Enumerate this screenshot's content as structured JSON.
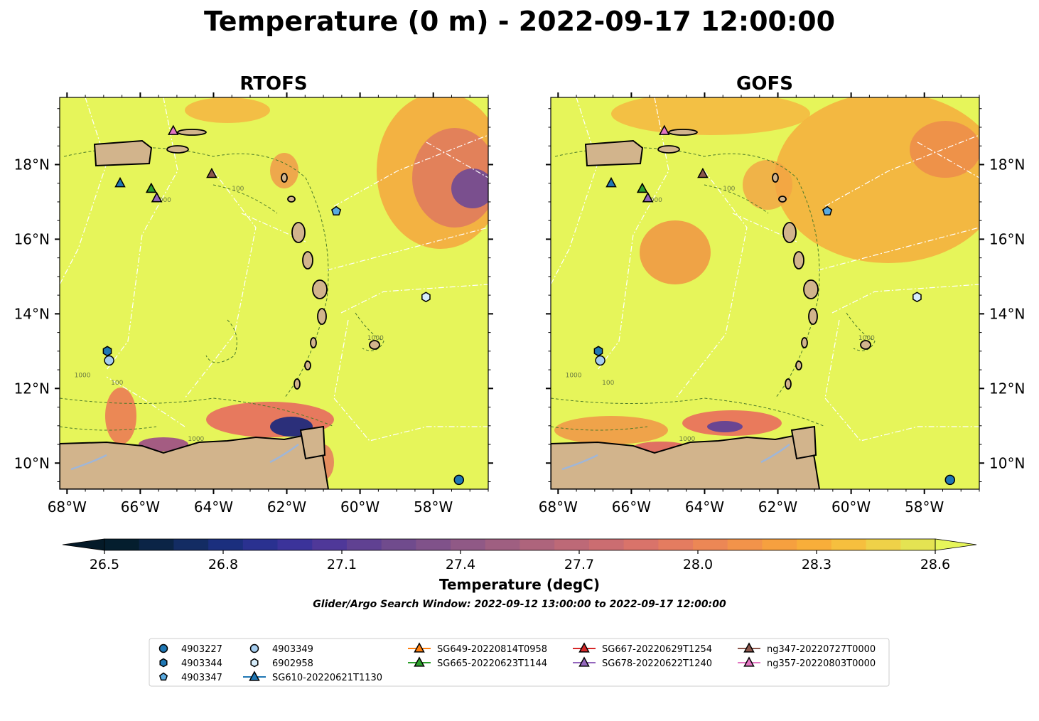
{
  "figure": {
    "title": "Temperature (0 m) - 2022-09-17 12:00:00",
    "search_window": "Glider/Argo Search Window: 2022-09-12 13:00:00 to 2022-09-17 12:00:00"
  },
  "panels": [
    {
      "id": "rtofs",
      "title": "RTOFS"
    },
    {
      "id": "gofs",
      "title": "GOFS"
    }
  ],
  "axes": {
    "lon_ticks": [
      "68°W",
      "66°W",
      "64°W",
      "62°W",
      "60°W",
      "58°W"
    ],
    "lat_ticks": [
      "18°N",
      "16°N",
      "14°N",
      "12°N",
      "10°N"
    ],
    "lon_range": [
      -68.2,
      -56.5
    ],
    "lat_range": [
      9.3,
      19.8
    ]
  },
  "colorbar": {
    "label": "Temperature (degC)",
    "range": [
      26.5,
      28.6
    ],
    "ticks": [
      "26.5",
      "26.8",
      "27.1",
      "27.4",
      "27.7",
      "28.0",
      "28.3",
      "28.6"
    ],
    "extend": "both",
    "colors": [
      "#041e2e",
      "#0b2446",
      "#132c63",
      "#1b2f7e",
      "#2a3190",
      "#3b339a",
      "#4f3899",
      "#604192",
      "#704b8d",
      "#80528a",
      "#905986",
      "#9f5f81",
      "#ae647c",
      "#bd6977",
      "#cb6d71",
      "#d9736a",
      "#e47c60",
      "#ec8755",
      "#f2934a",
      "#f6a03f",
      "#f8ae3a",
      "#f6bf3e",
      "#efd148",
      "#e4e352"
    ]
  },
  "markers": [
    {
      "label": "4903227",
      "shape": "circle",
      "color": "#1f77b4",
      "lon": -57.3,
      "lat": 9.55
    },
    {
      "label": "4903344",
      "shape": "hexagon",
      "color": "#1f77b4",
      "lon": -66.9,
      "lat": 13.0
    },
    {
      "label": "4903347",
      "shape": "pentagon",
      "color": "#5aaae0",
      "lon": -60.65,
      "lat": 16.75
    },
    {
      "label": "4903349",
      "shape": "circle",
      "color": "#a6cef0",
      "lon": -66.85,
      "lat": 12.75
    },
    {
      "label": "6902958",
      "shape": "hexagon",
      "color": "#d6ecfa",
      "lon": -58.2,
      "lat": 14.45
    },
    {
      "label": "SG610-20220621T1130",
      "shape": "triangle",
      "color": "#1f77b4",
      "lon": -66.55,
      "lat": 17.5
    },
    {
      "label": "SG649-20220814T0958",
      "shape": "triangle",
      "color": "#ff7f0e",
      "lon": -65.7,
      "lat": 17.35
    },
    {
      "label": "SG665-20220623T1144",
      "shape": "triangle",
      "color": "#2ca02c",
      "lon": -65.7,
      "lat": 17.35
    },
    {
      "label": "SG667-20220629T1254",
      "shape": "triangle",
      "color": "#d62728",
      "lon": -65.55,
      "lat": 17.1
    },
    {
      "label": "SG678-20220622T1240",
      "shape": "triangle",
      "color": "#9467bd",
      "lon": -65.55,
      "lat": 17.1
    },
    {
      "label": "ng347-20220727T0000",
      "shape": "triangle",
      "color": "#8c564b",
      "lon": -64.05,
      "lat": 17.75
    },
    {
      "label": "ng357-20220803T0000",
      "shape": "triangle",
      "color": "#e377c2",
      "lon": -65.1,
      "lat": 18.9
    }
  ],
  "contour_labels": [
    "100",
    "1000"
  ],
  "colors": {
    "land": "#d2b48c",
    "ocean_base": "#e6f55a",
    "rivers": "#9fb6d8",
    "eez": "#ffffff"
  }
}
